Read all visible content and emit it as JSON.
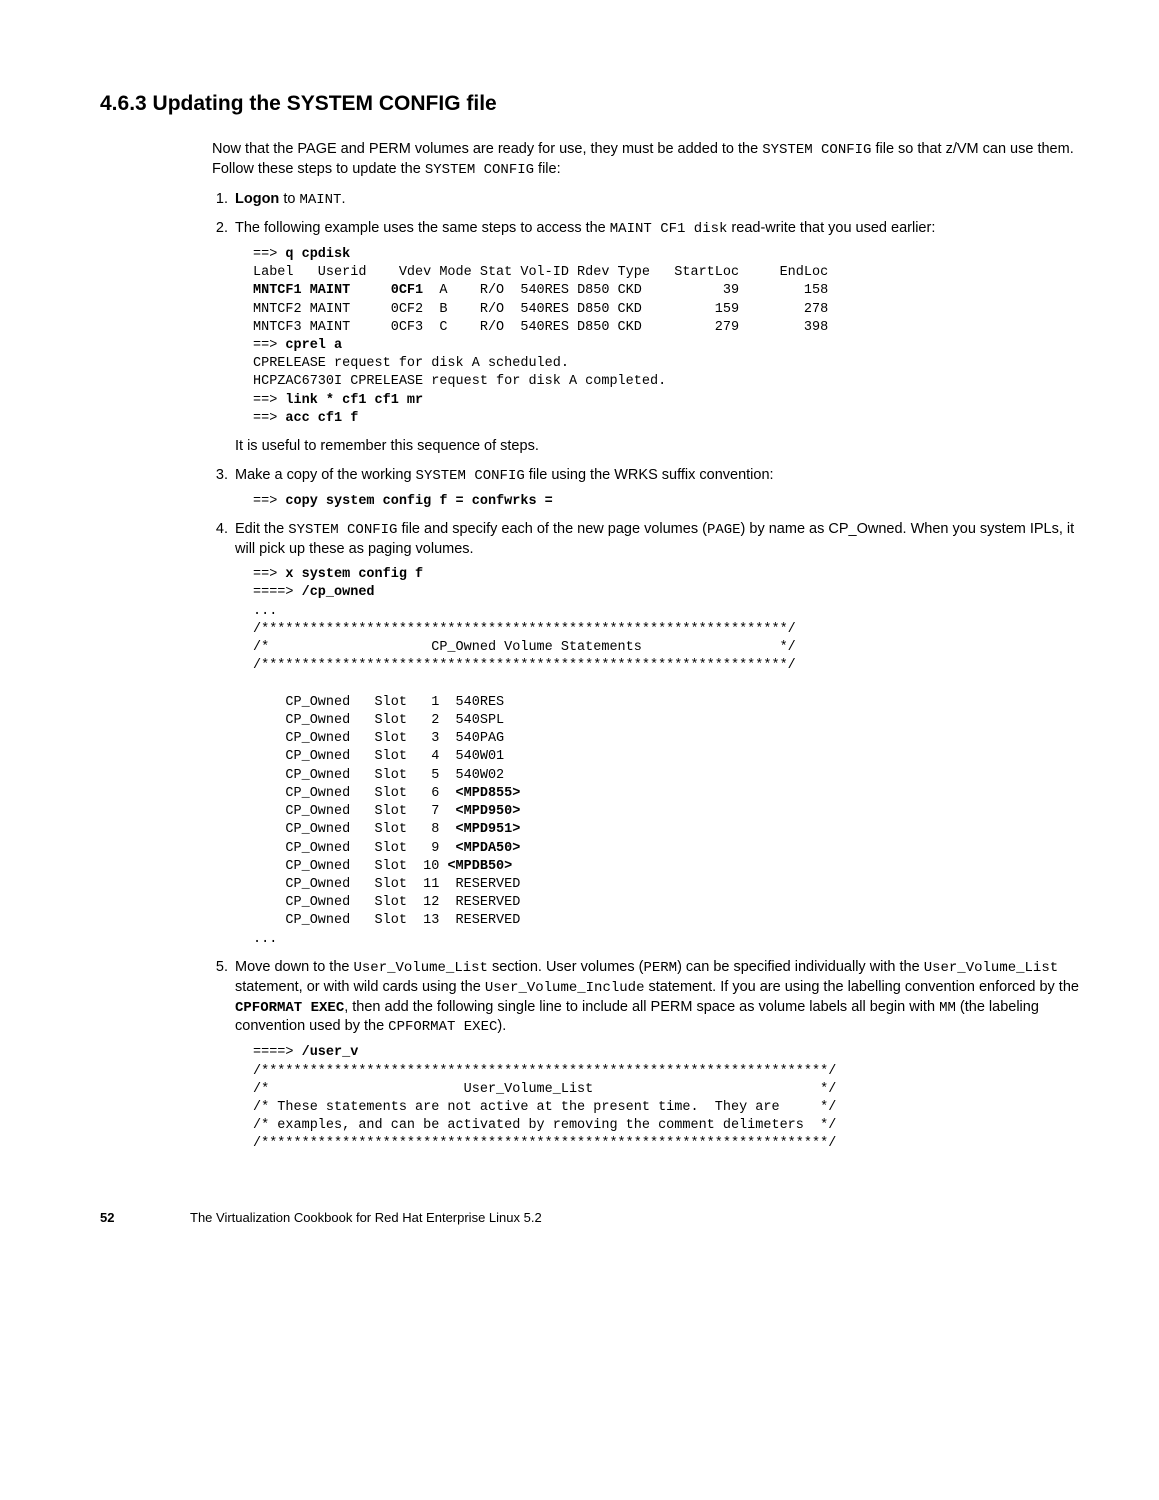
{
  "heading": "4.6.3  Updating the SYSTEM CONFIG file",
  "intro1a": "Now that the PAGE and PERM volumes are ready for use, they must be added to the ",
  "intro1b": "SYSTEM CONFIG",
  "intro1c": " file so that z/VM can use them. Follow these steps to update the ",
  "intro1d": "SYSTEM CONFIG",
  "intro1e": " file:",
  "step1a": "Logon",
  "step1b": " to ",
  "step1c": "MAINT",
  "step1d": ".",
  "step2a": "The following example uses the same steps to access the ",
  "step2b": "MAINT CF1 disk",
  "step2c": " read-write that you used earlier:",
  "code1_l1a": "==> ",
  "code1_l1b": "q cpdisk",
  "code1_l2": "Label   Userid    Vdev Mode Stat Vol-ID Rdev Type   StartLoc     EndLoc",
  "code1_l3a": "MNTCF1 MAINT     0CF1",
  "code1_l3b": "  A    R/O  540RES D850 CKD          39        158",
  "code1_l4": "MNTCF2 MAINT     0CF2  B    R/O  540RES D850 CKD         159        278",
  "code1_l5": "MNTCF3 MAINT     0CF3  C    R/O  540RES D850 CKD         279        398",
  "code1_l6a": "==> ",
  "code1_l6b": "cprel a",
  "code1_l7": "CPRELEASE request for disk A scheduled.",
  "code1_l8": "HCPZAC6730I CPRELEASE request for disk A completed.",
  "code1_l9a": "==> ",
  "code1_l9b": "link * cf1 cf1 mr",
  "code1_l10a": "==> ",
  "code1_l10b": "acc cf1 f",
  "step2_after": "It is useful to remember this sequence of steps.",
  "step3a": "Make a copy of the working ",
  "step3b": "SYSTEM CONFIG",
  "step3c": " file using the WRKS suffix convention:",
  "code2a": "==> ",
  "code2b": "copy system config f = confwrks =",
  "step4a": "Edit the ",
  "step4b": "SYSTEM CONFIG",
  "step4c": " file and specify each of the new page volumes (",
  "step4d": "PAGE",
  "step4e": ") by name as CP_Owned. When you system IPLs, it will pick up these as paging volumes.",
  "code3_l1a": "==> ",
  "code3_l1b": "x system config f",
  "code3_l2a": "====> ",
  "code3_l2b": "/cp_owned",
  "code3_l3": "...",
  "code3_l4": "/*****************************************************************/",
  "code3_l5": "/*                    CP_Owned Volume Statements                 */",
  "code3_l6": "/*****************************************************************/",
  "code3_l7": "",
  "code3_l8": "    CP_Owned   Slot   1  540RES",
  "code3_l9": "    CP_Owned   Slot   2  540SPL",
  "code3_l10": "    CP_Owned   Slot   3  540PAG",
  "code3_l11": "    CP_Owned   Slot   4  540W01",
  "code3_l12": "    CP_Owned   Slot   5  540W02",
  "code3_l13a": "    CP_Owned   Slot   6  ",
  "code3_l13b": "<MPD855>",
  "code3_l14a": "    CP_Owned   Slot   7  ",
  "code3_l14b": "<MPD950>",
  "code3_l15a": "    CP_Owned   Slot   8  ",
  "code3_l15b": "<MPD951>",
  "code3_l16a": "    CP_Owned   Slot   9  ",
  "code3_l16b": "<MPDA50>",
  "code3_l17a": "    CP_Owned   Slot  10 ",
  "code3_l17b": "<MPDB50>",
  "code3_l18": "    CP_Owned   Slot  11  RESERVED",
  "code3_l19": "    CP_Owned   Slot  12  RESERVED",
  "code3_l20": "    CP_Owned   Slot  13  RESERVED",
  "code3_l21": "...",
  "step5a": "Move down to the ",
  "step5b": "User_Volume_List",
  "step5c": " section. User volumes (",
  "step5d": "PERM",
  "step5e": ") can be specified individually with the ",
  "step5f": "User_Volume_List",
  "step5g": " statement, or with wild cards using the ",
  "step5h": "User_Volume_Include",
  "step5i": " statement. If you are using the labelling convention enforced by the ",
  "step5j": "CPFORMAT EXEC",
  "step5k": ", then add the following single line to include all PERM space as volume labels all begin with ",
  "step5l": "MM",
  "step5m": " (the labeling convention used by the ",
  "step5n": "CPFORMAT EXEC",
  "step5o": ").",
  "code4_l1a": "====> ",
  "code4_l1b": "/user_v",
  "code4_l2": "/**********************************************************************/",
  "code4_l3": "/*                        User_Volume_List                            */",
  "code4_l4": "/* These statements are not active at the present time.  They are     */",
  "code4_l5": "/* examples, and can be activated by removing the comment delimeters  */",
  "code4_l6": "/**********************************************************************/",
  "footer_page": "52",
  "footer_text": "The Virtualization Cookbook for Red Hat Enterprise Linux 5.2"
}
